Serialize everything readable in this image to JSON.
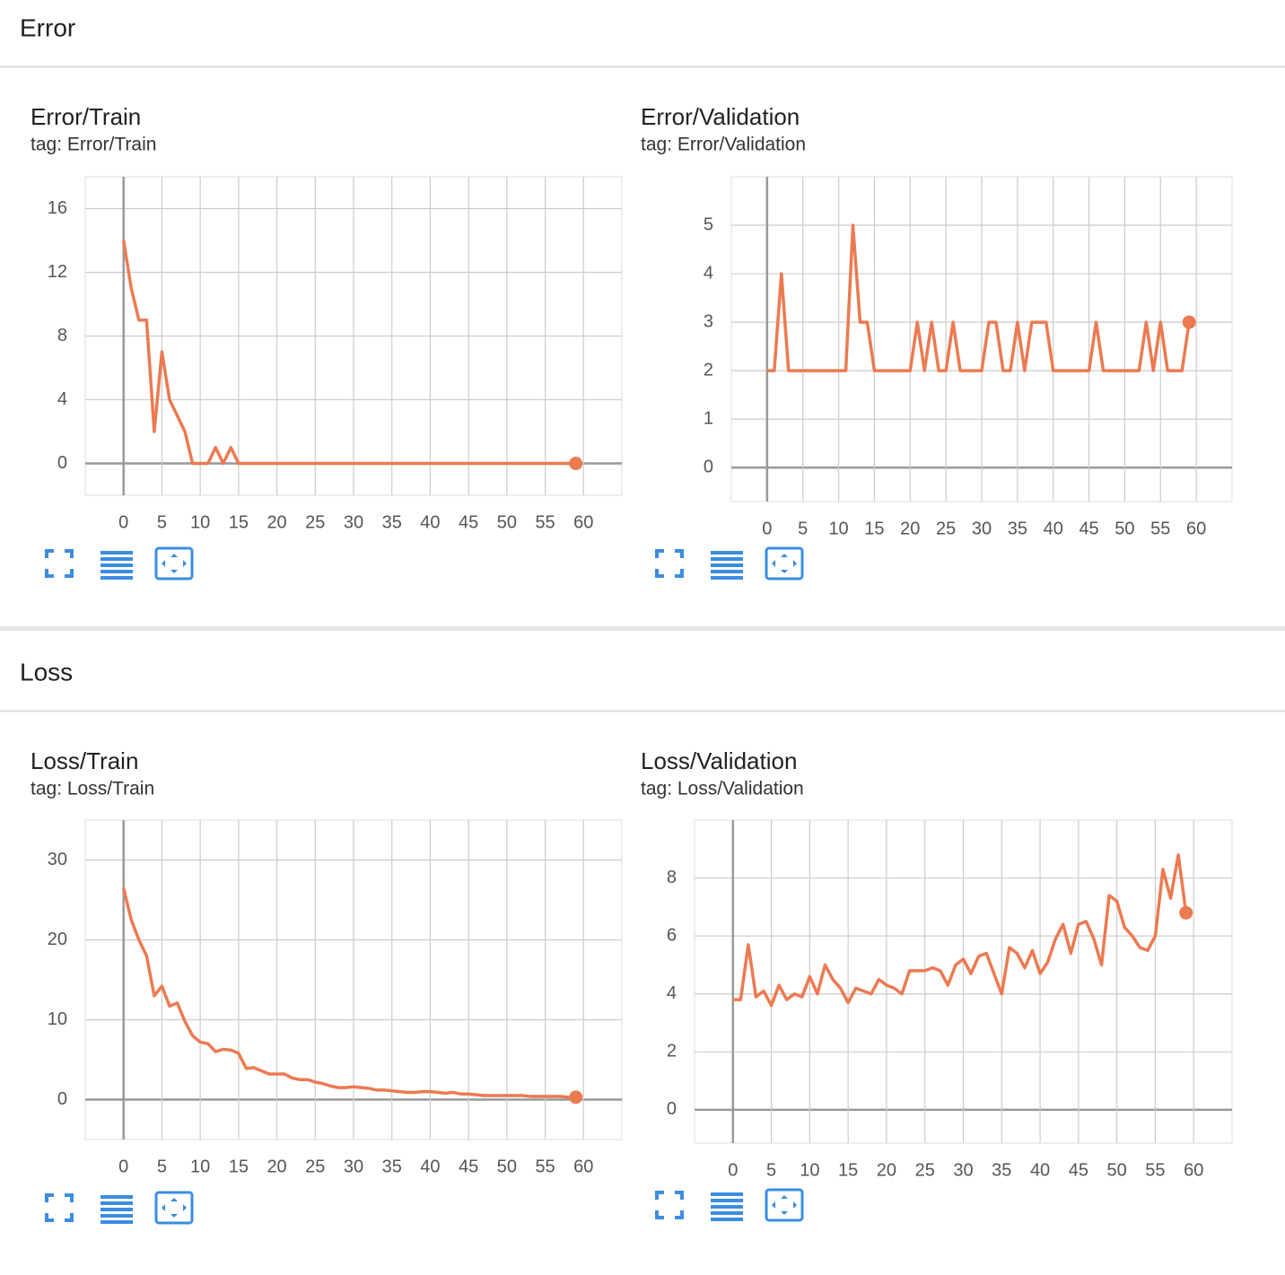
{
  "sections": [
    "Error",
    "Loss"
  ],
  "chart_data": [
    {
      "type": "line",
      "title": "Error/Train",
      "subtitle": "tag: Error/Train",
      "x": [
        0,
        1,
        2,
        3,
        4,
        5,
        6,
        7,
        8,
        9,
        10,
        11,
        12,
        13,
        14,
        15,
        16,
        17,
        18,
        19,
        20,
        21,
        22,
        23,
        24,
        25,
        26,
        27,
        28,
        29,
        30,
        31,
        32,
        33,
        34,
        35,
        36,
        37,
        38,
        39,
        40,
        41,
        42,
        43,
        44,
        45,
        46,
        47,
        48,
        49,
        50,
        51,
        52,
        53,
        54,
        55,
        56,
        57,
        58,
        59
      ],
      "series": [
        {
          "color": "#ec7a51",
          "values": [
            14,
            11,
            9,
            9,
            2,
            7,
            4,
            3,
            2,
            0,
            0,
            0,
            1,
            0,
            1,
            0,
            0,
            0,
            0,
            0,
            0,
            0,
            0,
            0,
            0,
            0,
            0,
            0,
            0,
            0,
            0,
            0,
            0,
            0,
            0,
            0,
            0,
            0,
            0,
            0,
            0,
            0,
            0,
            0,
            0,
            0,
            0,
            0,
            0,
            0,
            0,
            0,
            0,
            0,
            0,
            0,
            0,
            0,
            0,
            0
          ]
        }
      ],
      "xlim": [
        -5,
        65
      ],
      "xticks": [
        0,
        5,
        10,
        15,
        20,
        25,
        30,
        35,
        40,
        45,
        50,
        55,
        60
      ],
      "ylim": [
        -2,
        18
      ],
      "yticks": [
        0,
        4,
        8,
        12,
        16
      ],
      "grid": true
    },
    {
      "type": "line",
      "title": "Error/Validation",
      "subtitle": "tag: Error/Validation",
      "x": [
        0,
        1,
        2,
        3,
        4,
        5,
        6,
        7,
        8,
        9,
        10,
        11,
        12,
        13,
        14,
        15,
        16,
        17,
        18,
        19,
        20,
        21,
        22,
        23,
        24,
        25,
        26,
        27,
        28,
        29,
        30,
        31,
        32,
        33,
        34,
        35,
        36,
        37,
        38,
        39,
        40,
        41,
        42,
        43,
        44,
        45,
        46,
        47,
        48,
        49,
        50,
        51,
        52,
        53,
        54,
        55,
        56,
        57,
        58,
        59
      ],
      "series": [
        {
          "color": "#ec7a51",
          "values": [
            2,
            2,
            4,
            2,
            2,
            2,
            2,
            2,
            2,
            2,
            2,
            2,
            5,
            3,
            3,
            2,
            2,
            2,
            2,
            2,
            2,
            3,
            2,
            3,
            2,
            2,
            3,
            2,
            2,
            2,
            2,
            3,
            3,
            2,
            2,
            3,
            2,
            3,
            3,
            3,
            2,
            2,
            2,
            2,
            2,
            2,
            3,
            2,
            2,
            2,
            2,
            2,
            2,
            3,
            2,
            3,
            2,
            2,
            2,
            3
          ]
        }
      ],
      "xlim": [
        -5,
        65
      ],
      "xticks": [
        0,
        5,
        10,
        15,
        20,
        25,
        30,
        35,
        40,
        45,
        50,
        55,
        60
      ],
      "ylim": [
        -0.7,
        6
      ],
      "yticks": [
        0,
        1,
        2,
        3,
        4,
        5
      ],
      "grid": true
    },
    {
      "type": "line",
      "title": "Loss/Train",
      "subtitle": "tag: Loss/Train",
      "x": [
        0,
        1,
        2,
        3,
        4,
        5,
        6,
        7,
        8,
        9,
        10,
        11,
        12,
        13,
        14,
        15,
        16,
        17,
        18,
        19,
        20,
        21,
        22,
        23,
        24,
        25,
        26,
        27,
        28,
        29,
        30,
        31,
        32,
        33,
        34,
        35,
        36,
        37,
        38,
        39,
        40,
        41,
        42,
        43,
        44,
        45,
        46,
        47,
        48,
        49,
        50,
        51,
        52,
        53,
        54,
        55,
        56,
        57,
        58,
        59
      ],
      "series": [
        {
          "color": "#ec7a51",
          "values": [
            26.5,
            22.5,
            20,
            18,
            13,
            14.2,
            11.7,
            12.1,
            9.8,
            8,
            7.2,
            7,
            6,
            6.3,
            6.2,
            5.8,
            3.9,
            4,
            3.6,
            3.2,
            3.2,
            3.2,
            2.7,
            2.5,
            2.5,
            2.2,
            2,
            1.7,
            1.5,
            1.5,
            1.6,
            1.5,
            1.4,
            1.2,
            1.2,
            1.1,
            1,
            0.9,
            0.9,
            1,
            1,
            0.9,
            0.8,
            0.9,
            0.7,
            0.7,
            0.6,
            0.5,
            0.5,
            0.5,
            0.5,
            0.5,
            0.5,
            0.4,
            0.4,
            0.4,
            0.4,
            0.4,
            0.3,
            0.3
          ]
        }
      ],
      "xlim": [
        -5,
        65
      ],
      "xticks": [
        0,
        5,
        10,
        15,
        20,
        25,
        30,
        35,
        40,
        45,
        50,
        55,
        60
      ],
      "ylim": [
        -5,
        35
      ],
      "yticks": [
        0,
        10,
        20,
        30
      ],
      "grid": true
    },
    {
      "type": "line",
      "title": "Loss/Validation",
      "subtitle": "tag: Loss/Validation",
      "x": [
        0,
        1,
        2,
        3,
        4,
        5,
        6,
        7,
        8,
        9,
        10,
        11,
        12,
        13,
        14,
        15,
        16,
        17,
        18,
        19,
        20,
        21,
        22,
        23,
        24,
        25,
        26,
        27,
        28,
        29,
        30,
        31,
        32,
        33,
        34,
        35,
        36,
        37,
        38,
        39,
        40,
        41,
        42,
        43,
        44,
        45,
        46,
        47,
        48,
        49,
        50,
        51,
        52,
        53,
        54,
        55,
        56,
        57,
        58,
        59
      ],
      "series": [
        {
          "color": "#ec7a51",
          "values": [
            3.8,
            3.8,
            5.7,
            3.9,
            4.1,
            3.6,
            4.3,
            3.8,
            4,
            3.9,
            4.6,
            4,
            5,
            4.5,
            4.2,
            3.7,
            4.2,
            4.1,
            4,
            4.5,
            4.3,
            4.2,
            4,
            4.8,
            4.8,
            4.8,
            4.9,
            4.8,
            4.3,
            5,
            5.2,
            4.7,
            5.3,
            5.4,
            4.7,
            4,
            5.6,
            5.4,
            4.9,
            5.5,
            4.7,
            5.1,
            5.9,
            6.4,
            5.4,
            6.4,
            6.5,
            5.9,
            5,
            7.4,
            7.2,
            6.3,
            6,
            5.6,
            5.5,
            6,
            8.3,
            7.3,
            8.8,
            6.8
          ]
        }
      ],
      "xlim": [
        -5,
        65
      ],
      "xticks": [
        0,
        5,
        10,
        15,
        20,
        25,
        30,
        35,
        40,
        45,
        50,
        55,
        60
      ],
      "ylim": [
        -1.15,
        10
      ],
      "yticks": [
        0,
        2,
        4,
        6,
        8
      ],
      "grid": true
    }
  ]
}
